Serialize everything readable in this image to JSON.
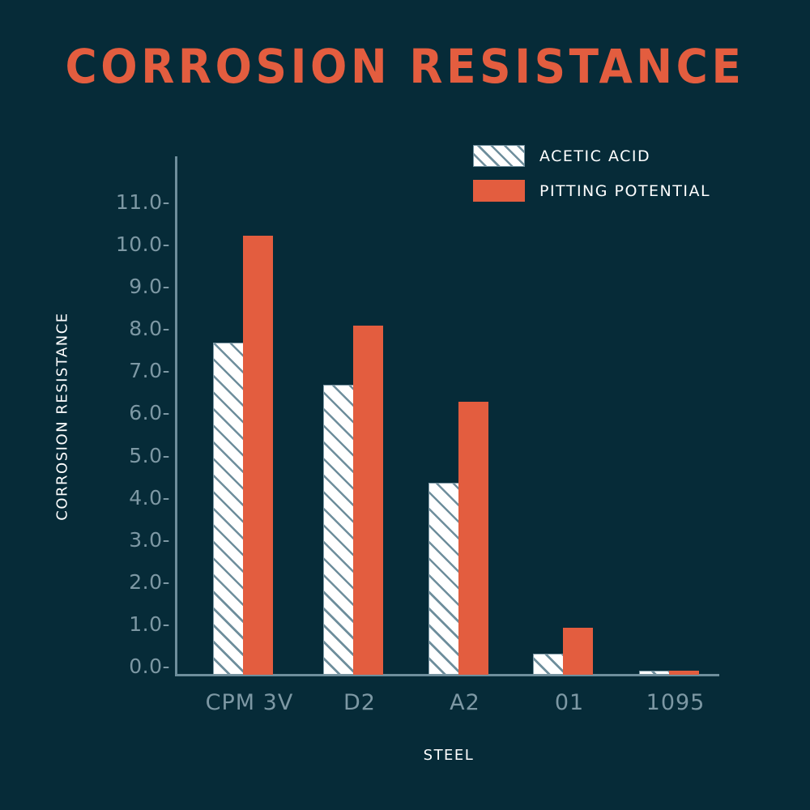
{
  "title": "CORROSION RESISTANCE",
  "legend": [
    {
      "label": "ACETIC ACID",
      "style": "hatched",
      "color": "#ffffff",
      "hatch_color": "#6e8e9c"
    },
    {
      "label": "PITTING POTENTIAL",
      "style": "solid",
      "color": "#e35d3f"
    }
  ],
  "axes": {
    "y_title": "CORROSION RESISTANCE",
    "x_title": "STEEL",
    "y_ticks": [
      "0.0-",
      "1.0-",
      "2.0-",
      "3.0-",
      "4.0-",
      "5.0-",
      "6.0-",
      "7.0-",
      "8.0-",
      "9.0-",
      "10.0-",
      "11.0-"
    ],
    "x_ticks": [
      "CPM 3V",
      "D2",
      "A2",
      "01",
      "1095"
    ]
  },
  "colors": {
    "background": "#062b38",
    "accent": "#e35d3f",
    "axis": "#6e8e9c",
    "tick_text": "#7d98a4"
  },
  "chart_data": {
    "type": "bar",
    "title": "CORROSION RESISTANCE",
    "xlabel": "STEEL",
    "ylabel": "CORROSION RESISTANCE",
    "categories": [
      "CPM 3V",
      "D2",
      "A2",
      "01",
      "1095"
    ],
    "series": [
      {
        "name": "ACETIC ACID",
        "values": [
          7.8,
          6.8,
          4.5,
          0.5,
          0.1
        ]
      },
      {
        "name": "PITTING POTENTIAL",
        "values": [
          10.3,
          8.2,
          6.4,
          1.1,
          0.1
        ]
      }
    ],
    "ylim": [
      0,
      11.0
    ],
    "yticks": [
      0,
      1,
      2,
      3,
      4,
      5,
      6,
      7,
      8,
      9,
      10,
      11
    ],
    "grid": false,
    "legend_position": "top-right"
  }
}
